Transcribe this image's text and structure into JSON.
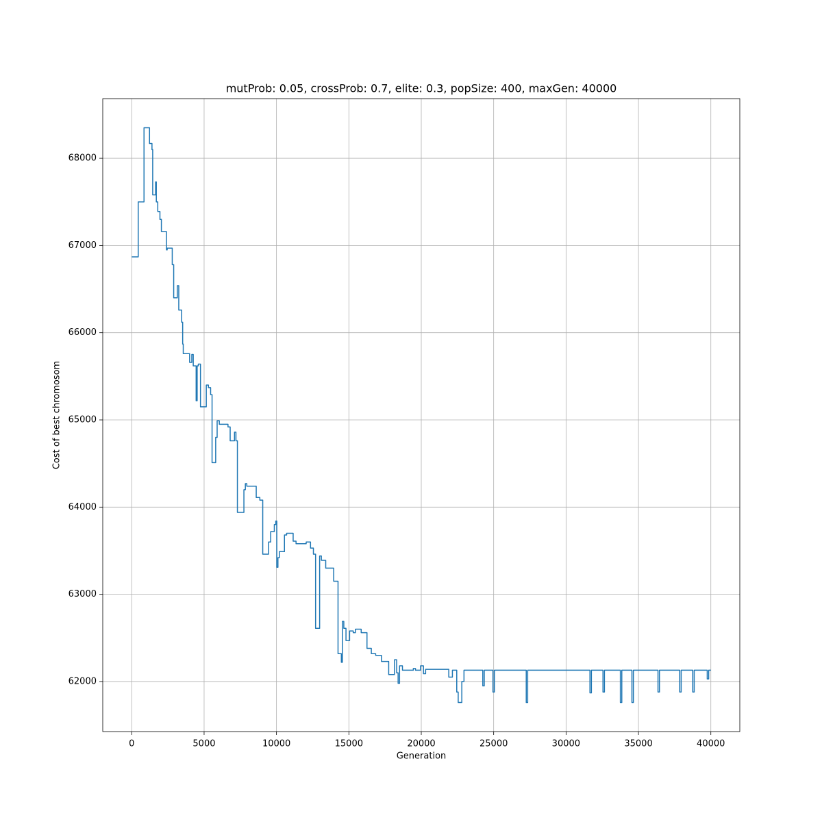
{
  "chart_data": {
    "type": "line",
    "title": "mutProb: 0.05, crossProb: 0.7, elite: 0.3, popSize: 400, maxGen: 40000",
    "x_label": "Generation",
    "y_label": "Cost of best chromosom",
    "grid": true,
    "xlim": [
      -2000,
      42000
    ],
    "ylim": [
      61426,
      68684
    ],
    "xticks": [
      0,
      5000,
      10000,
      15000,
      20000,
      25000,
      30000,
      35000,
      40000
    ],
    "yticks": [
      62000,
      63000,
      64000,
      65000,
      66000,
      67000,
      68000
    ],
    "x": [
      0,
      450,
      450,
      850,
      850,
      1230,
      1230,
      1400,
      1400,
      1450,
      1450,
      1650,
      1650,
      1700,
      1700,
      1800,
      1800,
      1950,
      1950,
      2050,
      2050,
      2400,
      2400,
      2450,
      2450,
      2800,
      2800,
      2900,
      2900,
      3150,
      3150,
      3250,
      3250,
      3450,
      3450,
      3520,
      3520,
      3560,
      3560,
      4000,
      4000,
      4150,
      4150,
      4250,
      4250,
      4450,
      4450,
      4520,
      4520,
      4600,
      4600,
      4750,
      4750,
      5150,
      5150,
      5300,
      5300,
      5450,
      5450,
      5550,
      5550,
      5800,
      5800,
      5900,
      5900,
      6050,
      6050,
      6650,
      6650,
      6800,
      6800,
      7100,
      7100,
      7200,
      7200,
      7300,
      7300,
      7750,
      7750,
      7850,
      7850,
      7950,
      7950,
      8600,
      8600,
      8850,
      8850,
      9050,
      9050,
      9450,
      9450,
      9600,
      9600,
      9850,
      9850,
      9950,
      9950,
      10020,
      10020,
      10100,
      10100,
      10200,
      10200,
      10550,
      10550,
      10700,
      10700,
      11150,
      11150,
      11350,
      11350,
      12050,
      12050,
      12350,
      12350,
      12550,
      12550,
      12700,
      12700,
      12980,
      12980,
      13100,
      13100,
      13400,
      13400,
      13950,
      13950,
      14250,
      14250,
      14480,
      14480,
      14550,
      14550,
      14650,
      14650,
      14800,
      14800,
      15050,
      15050,
      15300,
      15300,
      15450,
      15450,
      15850,
      15850,
      16250,
      16250,
      16550,
      16550,
      16850,
      16850,
      17250,
      17250,
      17750,
      17750,
      18150,
      18150,
      18300,
      18300,
      18400,
      18400,
      18500,
      18500,
      18700,
      18700,
      19450,
      19450,
      19600,
      19600,
      19950,
      19950,
      20150,
      20150,
      20300,
      20300,
      21900,
      21900,
      22150,
      22150,
      22450,
      22450,
      22550,
      22550,
      22800,
      22800,
      22950,
      22950,
      24250,
      24250,
      24350,
      24350,
      24950,
      24950,
      25050,
      25050,
      27250,
      27250,
      27350,
      27350,
      31650,
      31650,
      31750,
      31750,
      32550,
      32550,
      32650,
      32650,
      33750,
      33750,
      33850,
      33850,
      34550,
      34550,
      34650,
      34650,
      36350,
      36350,
      36450,
      36450,
      37850,
      37850,
      37950,
      37950,
      38750,
      38750,
      38850,
      38850,
      39750,
      39750,
      39850,
      39850,
      40000
    ],
    "series": [
      {
        "color": "#1f77b4",
        "values": [
          66870,
          66870,
          67500,
          67500,
          68350,
          68350,
          68170,
          68170,
          68100,
          68100,
          67580,
          67580,
          67730,
          67730,
          67500,
          67500,
          67390,
          67390,
          67300,
          67300,
          67160,
          67160,
          66950,
          66950,
          66970,
          66970,
          66780,
          66780,
          66400,
          66400,
          66540,
          66540,
          66260,
          66260,
          66120,
          66120,
          65870,
          65870,
          65760,
          65760,
          65660,
          65660,
          65750,
          65750,
          65620,
          65620,
          65220,
          65220,
          65620,
          65620,
          65640,
          65640,
          65150,
          65150,
          65400,
          65400,
          65370,
          65370,
          65290,
          65290,
          64510,
          64510,
          64800,
          64800,
          64990,
          64990,
          64950,
          64950,
          64920,
          64920,
          64760,
          64760,
          64860,
          64860,
          64760,
          64760,
          63940,
          63940,
          64200,
          64200,
          64270,
          64270,
          64240,
          64240,
          64110,
          64110,
          64080,
          64080,
          63460,
          63460,
          63600,
          63600,
          63720,
          63720,
          63800,
          63800,
          63840,
          63840,
          63310,
          63310,
          63420,
          63420,
          63490,
          63490,
          63680,
          63680,
          63700,
          63700,
          63610,
          63610,
          63580,
          63580,
          63600,
          63600,
          63530,
          63530,
          63460,
          63460,
          62610,
          62610,
          63440,
          63440,
          63390,
          63390,
          63300,
          63300,
          63150,
          63150,
          62320,
          62320,
          62220,
          62220,
          62690,
          62690,
          62610,
          62610,
          62470,
          62470,
          62580,
          62580,
          62560,
          62560,
          62600,
          62600,
          62560,
          62560,
          62380,
          62380,
          62320,
          62320,
          62300,
          62300,
          62230,
          62230,
          62080,
          62080,
          62250,
          62250,
          62100,
          62100,
          61980,
          61980,
          62180,
          62180,
          62130,
          62130,
          62150,
          62150,
          62130,
          62130,
          62180,
          62180,
          62090,
          62090,
          62140,
          62140,
          62050,
          62050,
          62130,
          62130,
          61880,
          61880,
          61760,
          61760,
          62000,
          62000,
          62130,
          62130,
          61950,
          61950,
          62130,
          62130,
          61880,
          61880,
          62130,
          62130,
          61760,
          61760,
          62130,
          62130,
          61870,
          61870,
          62130,
          62130,
          61880,
          61880,
          62130,
          62130,
          61760,
          61760,
          62130,
          62130,
          61760,
          61760,
          62130,
          62130,
          61880,
          61880,
          62130,
          62130,
          61880,
          61880,
          62130,
          62130,
          61880,
          61880,
          62130,
          62130,
          62030,
          62030,
          62130,
          62130
        ]
      }
    ]
  }
}
